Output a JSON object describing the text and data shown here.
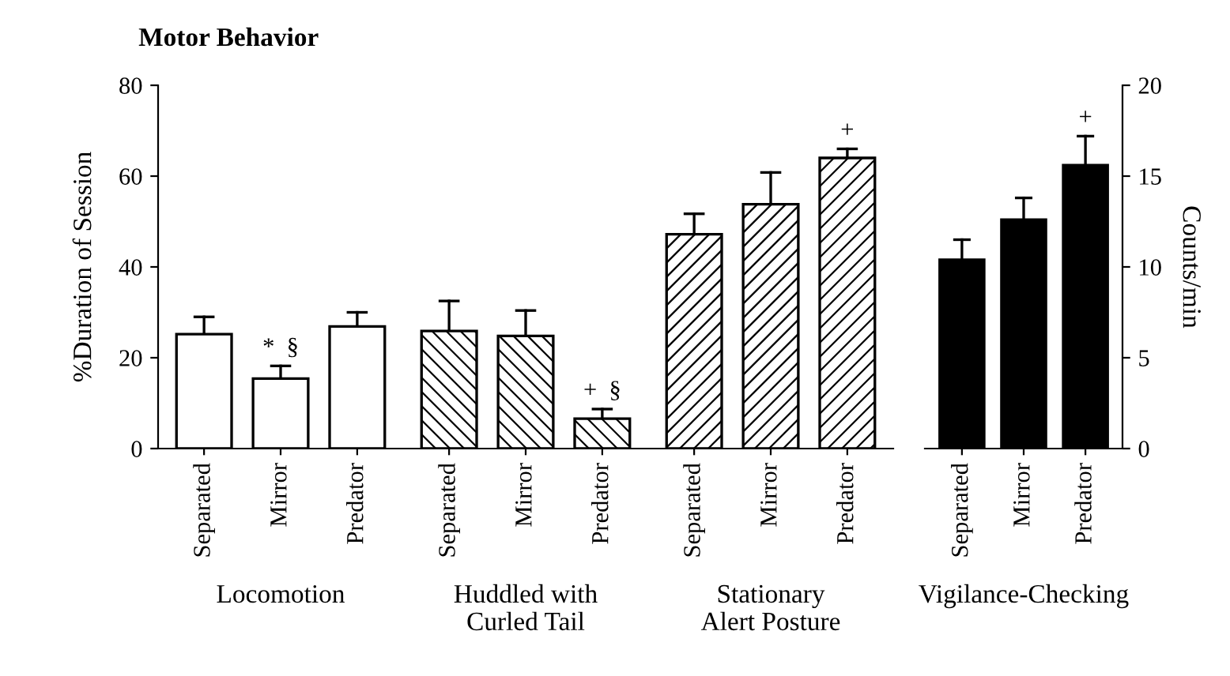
{
  "chart_data": [
    {
      "type": "bar",
      "title": "Motor Behavior",
      "ylabel": "%Duration of Session",
      "xlabel": "Locomotion",
      "categories": [
        "Separated",
        "Mirror",
        "Predator"
      ],
      "values": [
        25.2,
        15.4,
        26.9
      ],
      "errors": [
        [
          25.2,
          29
        ],
        [
          15.4,
          18.2
        ],
        [
          26.9,
          30
        ]
      ],
      "color": "#ffffff",
      "ylim": [
        0,
        80
      ],
      "yticks": [
        0,
        20,
        40,
        60,
        80
      ],
      "annotations": [
        {
          "text": "*  §",
          "x": "Mirror",
          "y": 18.2
        }
      ]
    },
    {
      "type": "bar",
      "xlabel": "Huddled with\nCurled Tail",
      "categories": [
        "Separated",
        "Mirror",
        "Predator"
      ],
      "values": [
        25.9,
        24.8,
        6.6
      ],
      "errors": [
        [
          25.9,
          32.5
        ],
        [
          24.8,
          30.4
        ],
        [
          6.6,
          8.7
        ]
      ],
      "color": "#ffffff",
      "ylim": [
        0,
        80
      ],
      "tick_labels": "x",
      "annotations": [
        {
          "text": "+  §",
          "x": "Predator",
          "y": 8.7
        }
      ]
    },
    {
      "type": "bar",
      "xlabel": "Stationary\nAlert Posture",
      "categories": [
        "Separated",
        "Mirror",
        "Predator"
      ],
      "values": [
        47.2,
        53.8,
        64
      ],
      "errors": [
        [
          47.2,
          51.7
        ],
        [
          53.8,
          60.8
        ],
        [
          64,
          66
        ]
      ],
      "color": "#ffffff",
      "ylim": [
        0,
        80
      ],
      "tick_labels": "x",
      "annotations": [
        {
          "text": "+",
          "x": "Predator",
          "y": 66
        }
      ]
    },
    {
      "type": "bar",
      "xlabel": "Vigilance-Checking",
      "ylabel": "Counts/min",
      "categories": [
        "Separated",
        "Mirror",
        "Predator"
      ],
      "values": [
        10.4,
        12.6,
        15.6
      ],
      "errors": [
        [
          10.4,
          11.5
        ],
        [
          12.6,
          13.8
        ],
        [
          15.6,
          17.2
        ]
      ],
      "color": "#000000",
      "ylim": [
        0,
        20
      ],
      "yticks": [
        0,
        5,
        10,
        15,
        20
      ],
      "annotations": [
        {
          "text": "+",
          "x": "Predator",
          "y": 17.2
        }
      ]
    }
  ]
}
